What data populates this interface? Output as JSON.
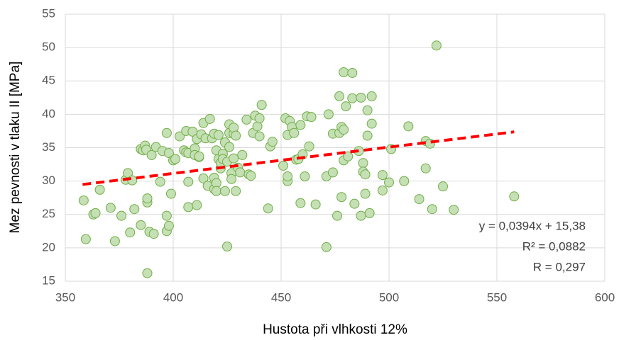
{
  "chart_data": {
    "type": "scatter",
    "x_label": "Hustota při vlhkosti 12%",
    "y_label": "Mez pevnosti v tlaku II [MPa]",
    "xlim": [
      350,
      600
    ],
    "xticks": [
      350,
      400,
      450,
      500,
      550,
      600
    ],
    "ylim": [
      15,
      55
    ],
    "yticks": [
      15,
      20,
      25,
      30,
      35,
      40,
      45,
      50,
      55
    ],
    "grid": true,
    "series": [
      {
        "name": "Mez pevnosti",
        "color": "#70ad47",
        "fill": "#c5e0b4",
        "x": [
          358.5,
          359.5,
          363,
          364,
          366,
          371,
          373,
          376,
          378,
          379,
          380,
          381,
          382,
          385,
          385,
          386,
          387,
          387.5,
          388,
          388,
          388,
          389,
          390,
          391,
          392,
          394,
          395,
          397,
          397,
          397,
          398,
          398,
          399,
          400,
          401,
          403,
          405,
          406,
          406,
          407,
          407,
          407,
          409,
          410,
          410,
          411,
          411,
          412,
          412,
          413,
          414,
          414,
          415,
          416,
          417,
          418,
          419,
          419,
          419,
          420,
          420,
          420,
          421,
          421,
          422,
          422,
          423,
          423,
          424,
          424,
          425,
          425,
          426,
          426,
          426,
          427,
          427,
          428,
          428,
          428,
          429,
          429,
          430,
          431,
          432,
          434,
          435,
          436,
          437,
          438,
          439,
          440,
          440,
          441,
          444,
          445,
          446,
          451,
          452,
          453,
          453,
          453,
          454,
          455,
          456,
          457,
          458,
          459,
          459,
          460,
          461,
          462,
          463,
          464,
          466,
          471,
          471,
          472,
          474,
          474,
          476,
          477,
          477,
          478,
          478,
          479,
          479,
          479,
          480,
          481,
          483,
          483,
          484,
          486,
          487,
          487,
          488,
          488,
          489,
          489,
          490,
          490,
          491,
          492,
          492,
          497,
          497,
          500,
          501,
          507,
          509,
          514,
          517,
          517,
          519,
          520,
          522,
          525,
          530,
          558
        ],
        "values": [
          27.1,
          21.3,
          25,
          25.2,
          28.7,
          26,
          21,
          24.8,
          30.2,
          31.2,
          22.3,
          30.1,
          25.8,
          23.4,
          34.8,
          34.6,
          35.3,
          34.7,
          26.8,
          27.4,
          16.2,
          22.4,
          33.9,
          22.1,
          35.1,
          29.9,
          34.5,
          37.2,
          22.5,
          24.8,
          34.2,
          23.3,
          28.1,
          33.1,
          33.3,
          36.7,
          34.6,
          37.5,
          34.3,
          34.2,
          29.9,
          26.1,
          37.4,
          34.9,
          33.9,
          36.3,
          26.4,
          33.6,
          33.7,
          37,
          38.7,
          30.4,
          36.4,
          29.3,
          39.3,
          36.4,
          37.1,
          28.8,
          30.5,
          34.6,
          29.7,
          28.5,
          33.3,
          36.9,
          31.9,
          32.7,
          34.1,
          33.3,
          35.8,
          28.5,
          32.9,
          20.2,
          38.5,
          35.1,
          37.2,
          31.2,
          30.3,
          33.4,
          37.1,
          38,
          28.5,
          36.8,
          32,
          31.3,
          33.9,
          39.2,
          31,
          30.8,
          37.2,
          39.8,
          38.2,
          36.7,
          39.4,
          41.4,
          25.9,
          35.2,
          35.9,
          32.3,
          39.4,
          30,
          30.7,
          36.9,
          39,
          38.1,
          37.2,
          33.2,
          33.3,
          26.7,
          38.4,
          34,
          30.7,
          39.7,
          35.2,
          39.6,
          26.5,
          30.7,
          20.1,
          40,
          31.3,
          37.1,
          24.8,
          37.2,
          42.7,
          38.1,
          27.6,
          37.7,
          33.1,
          46.3,
          41.2,
          33.7,
          46.2,
          42.4,
          26.6,
          34.5,
          42.5,
          24.8,
          32.7,
          31.4,
          28.1,
          31,
          36.8,
          40.6,
          25.2,
          38.6,
          42.7,
          30.9,
          28.6,
          29.8,
          34.8,
          30,
          38.2,
          27.3,
          31.9,
          36,
          35.6,
          25.8,
          50.3,
          29.2,
          25.7,
          27.7
        ]
      }
    ],
    "trendline": {
      "color": "#ff0000",
      "x": [
        358,
        558
      ],
      "values": [
        29.49,
        37.37
      ]
    },
    "annotations": [
      "y = 0,0394x + 15,38",
      "R² = 0,0882",
      "R = 0,297"
    ]
  }
}
